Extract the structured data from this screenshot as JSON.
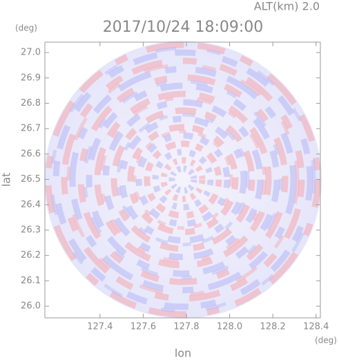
{
  "chart_data": {
    "type": "radar-ppi",
    "title": "2017/10/24 18:09:00",
    "subtitle": "ALT(km) 2.0",
    "x_label": "lon",
    "y_label": "lat",
    "x_unit": "(deg)",
    "y_unit": "(deg)",
    "xlim": [
      127.145,
      128.42
    ],
    "ylim": [
      25.954,
      27.041
    ],
    "xticks": [
      127.4,
      127.6,
      127.8,
      {
        "value": 128.0,
        "label": "128.0"
      },
      128.2,
      128.4
    ],
    "yticks": [
      {
        "value": 26.0,
        "label": "26.0"
      },
      26.1,
      26.2,
      26.3,
      26.4,
      26.5,
      26.6,
      26.7,
      26.8,
      26.9,
      {
        "value": 27.0,
        "label": "27.0"
      }
    ]
  }
}
